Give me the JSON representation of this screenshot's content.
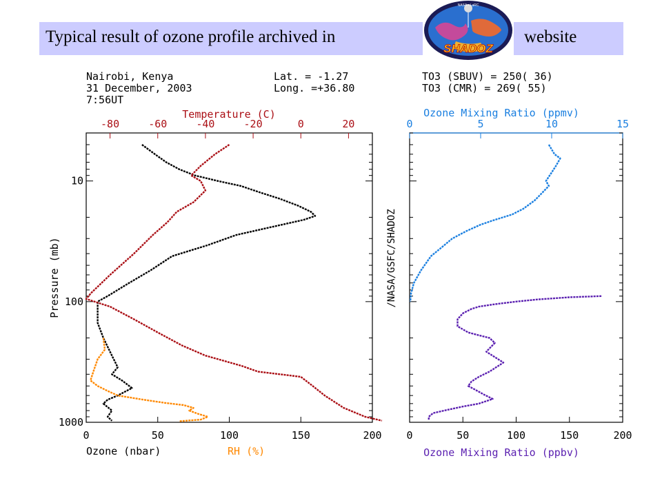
{
  "header": {
    "title_left": "Typical result of ozone profile archived in",
    "title_right": "website",
    "logo_text": "SHADOZ",
    "logo_top_text": "NASA • LaRC"
  },
  "info": {
    "location": "Nairobi, Kenya",
    "date": "31 December, 2003",
    "time": "7:56UT",
    "lat": "Lat.  = -1.27",
    "long": "Long. =+36.80",
    "to3_sbuv": "TO3 (SBUV) = 250( 36)",
    "to3_cmr": "TO3 (CMR)  = 269( 55)"
  },
  "side_label": "/NASA/GSFC/SHADOZ",
  "colors": {
    "temperature": "#aa0e14",
    "ozone": "#000000",
    "rh": "#ff8800",
    "ozone_ppmv": "#1a7fe0",
    "ozone_ppbv": "#5a1fb0"
  },
  "chart_data": [
    {
      "type": "line",
      "panel": "left",
      "ylabel": "Pressure (mb)",
      "ylim": [
        1000,
        4
      ],
      "yscale": "log",
      "yticks": [
        "10",
        "100",
        "1000"
      ],
      "bottom_axis": {
        "xlim": [
          0,
          200
        ],
        "ticks": [
          "0",
          "50",
          "100",
          "150",
          "200"
        ],
        "label_ozone": "Ozone (nbar)",
        "label_rh": "RH (%)"
      },
      "top_axis": {
        "label": "Temperature (C)",
        "xlim": [
          -90,
          30
        ],
        "ticks": [
          "-80",
          "-60",
          "-40",
          "-20",
          "0",
          "20"
        ]
      },
      "series": [
        {
          "name": "Ozone (nbar)",
          "axis": "bottom",
          "points": [
            [
              39,
              5
            ],
            [
              48,
              6
            ],
            [
              56,
              7
            ],
            [
              65,
              8
            ],
            [
              76,
              9
            ],
            [
              92,
              10
            ],
            [
              108,
              11
            ],
            [
              122,
              12.5
            ],
            [
              135,
              14
            ],
            [
              148,
              16
            ],
            [
              157,
              18
            ],
            [
              160,
              19.5
            ],
            [
              152,
              21
            ],
            [
              130,
              24
            ],
            [
              105,
              28
            ],
            [
              85,
              34
            ],
            [
              60,
              42
            ],
            [
              45,
              55
            ],
            [
              30,
              70
            ],
            [
              15,
              90
            ],
            [
              8,
              100
            ],
            [
              8,
              150
            ],
            [
              12,
              200
            ],
            [
              18,
              280
            ],
            [
              22,
              350
            ],
            [
              18,
              400
            ],
            [
              25,
              450
            ],
            [
              32,
              520
            ],
            [
              22,
              600
            ],
            [
              15,
              650
            ],
            [
              12,
              700
            ],
            [
              18,
              800
            ],
            [
              15,
              900
            ],
            [
              18,
              970
            ]
          ]
        },
        {
          "name": "RH (%)",
          "axis": "bottom",
          "points": [
            [
              12,
              200
            ],
            [
              13,
              250
            ],
            [
              8,
              300
            ],
            [
              5,
              380
            ],
            [
              3,
              450
            ],
            [
              8,
              500
            ],
            [
              15,
              550
            ],
            [
              22,
              600
            ],
            [
              40,
              650
            ],
            [
              55,
              690
            ],
            [
              68,
              720
            ],
            [
              75,
              760
            ],
            [
              72,
              800
            ],
            [
              78,
              850
            ],
            [
              85,
              900
            ],
            [
              80,
              950
            ],
            [
              65,
              980
            ]
          ]
        },
        {
          "name": "Temperature (C)",
          "axis": "top",
          "points": [
            [
              -30,
              5
            ],
            [
              -36,
              6
            ],
            [
              -42,
              7.5
            ],
            [
              -46,
              9
            ],
            [
              -42,
              10
            ],
            [
              -40,
              12
            ],
            [
              -45,
              15
            ],
            [
              -52,
              18
            ],
            [
              -56,
              22
            ],
            [
              -62,
              28
            ],
            [
              -70,
              40
            ],
            [
              -80,
              60
            ],
            [
              -88,
              85
            ],
            [
              -90,
              95
            ],
            [
              -80,
              110
            ],
            [
              -70,
              140
            ],
            [
              -60,
              180
            ],
            [
              -50,
              230
            ],
            [
              -40,
              280
            ],
            [
              -25,
              340
            ],
            [
              -18,
              380
            ],
            [
              0,
              420
            ],
            [
              5,
              500
            ],
            [
              10,
              600
            ],
            [
              18,
              760
            ],
            [
              27,
              900
            ],
            [
              34,
              970
            ]
          ]
        }
      ]
    },
    {
      "type": "line",
      "panel": "right",
      "ylim": [
        1000,
        4
      ],
      "yscale": "log",
      "top_axis": {
        "label": "Ozone Mixing Ratio (ppmv)",
        "xlim": [
          0,
          15
        ],
        "ticks": [
          "0",
          "5",
          "10",
          "15"
        ]
      },
      "bottom_axis": {
        "label": "Ozone Mixing Ratio (ppbv)",
        "xlim": [
          0,
          200
        ],
        "ticks": [
          "0",
          "50",
          "100",
          "150",
          "200"
        ]
      },
      "series": [
        {
          "name": "Ozone Mixing Ratio (ppmv)",
          "axis": "top",
          "points": [
            [
              9.8,
              5
            ],
            [
              10.2,
              6
            ],
            [
              10.6,
              6.5
            ],
            [
              10.3,
              7.5
            ],
            [
              10.0,
              8.5
            ],
            [
              9.6,
              10
            ],
            [
              9.8,
              11
            ],
            [
              9.2,
              13
            ],
            [
              8.8,
              14.5
            ],
            [
              8.0,
              17
            ],
            [
              7.2,
              19
            ],
            [
              6.0,
              21
            ],
            [
              5.0,
              23
            ],
            [
              4.0,
              26
            ],
            [
              3.0,
              30
            ],
            [
              2.2,
              36
            ],
            [
              1.5,
              42
            ],
            [
              0.8,
              55
            ],
            [
              0.3,
              70
            ],
            [
              0.1,
              85
            ],
            [
              0.05,
              100
            ]
          ]
        },
        {
          "name": "Ozone Mixing Ratio (ppbv)",
          "axis": "bottom",
          "points": [
            [
              180,
              90
            ],
            [
              150,
              92
            ],
            [
              120,
              96
            ],
            [
              100,
              100
            ],
            [
              80,
              105
            ],
            [
              65,
              110
            ],
            [
              58,
              115
            ],
            [
              50,
              125
            ],
            [
              45,
              140
            ],
            [
              45,
              160
            ],
            [
              55,
              180
            ],
            [
              65,
              190
            ],
            [
              75,
              200
            ],
            [
              80,
              220
            ],
            [
              72,
              260
            ],
            [
              88,
              320
            ],
            [
              75,
              380
            ],
            [
              65,
              420
            ],
            [
              58,
              460
            ],
            [
              55,
              500
            ],
            [
              62,
              540
            ],
            [
              70,
              590
            ],
            [
              78,
              640
            ],
            [
              65,
              700
            ],
            [
              50,
              740
            ],
            [
              35,
              790
            ],
            [
              22,
              840
            ],
            [
              18,
              900
            ],
            [
              18,
              960
            ]
          ]
        }
      ]
    }
  ]
}
